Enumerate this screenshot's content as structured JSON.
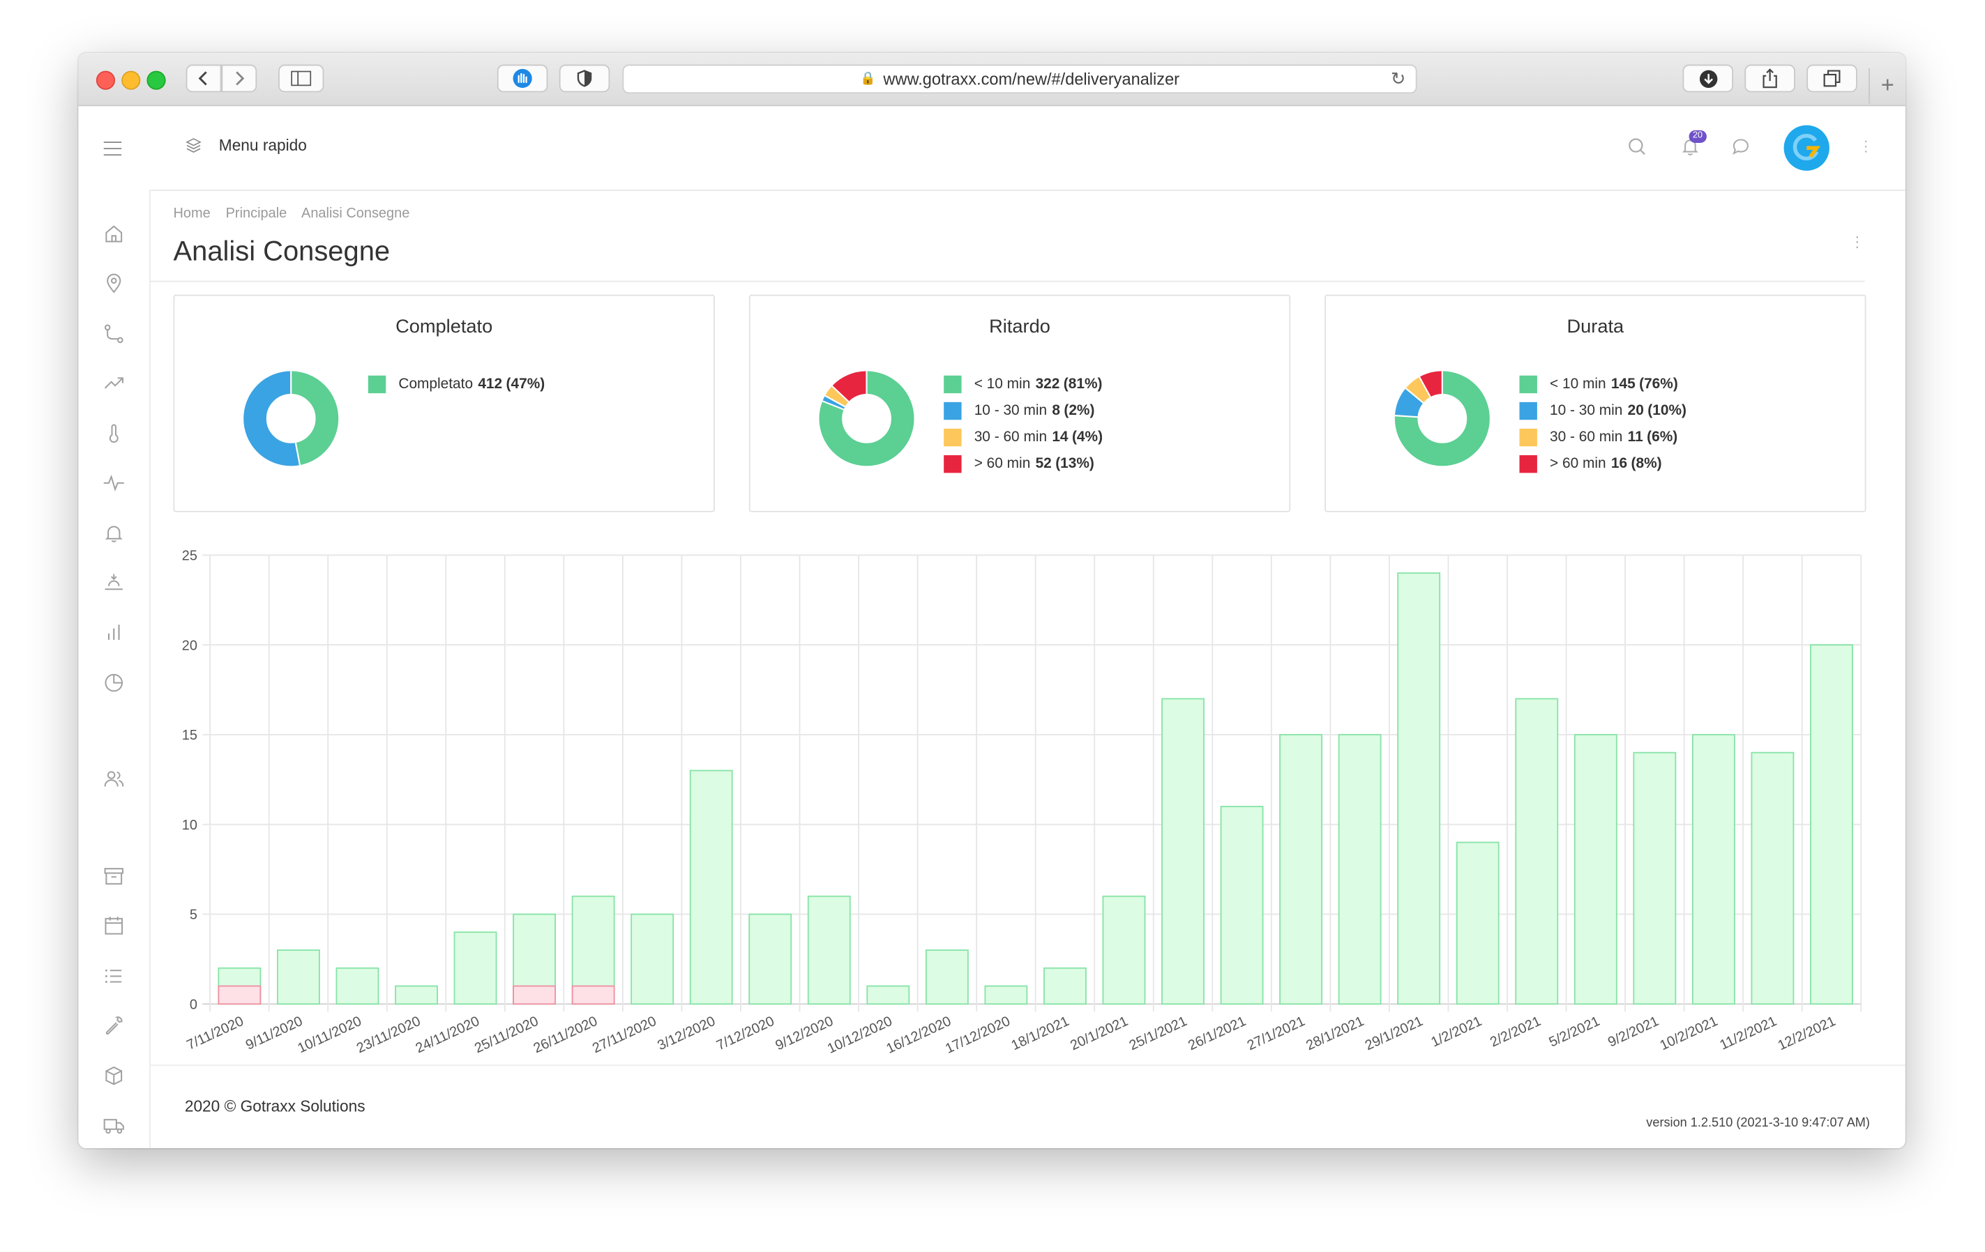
{
  "browser": {
    "url": "www.gotraxx.com/new/#/deliveryanalizer"
  },
  "header": {
    "quick_menu_label": "Menu rapido",
    "notifications_count": "20"
  },
  "breadcrumb": [
    "Home",
    "Principale",
    "Analisi Consegne"
  ],
  "page_title": "Analisi Consegne",
  "cards": [
    {
      "title": "Completato",
      "segments": [
        {
          "label": "Completato",
          "count": "412",
          "pct": "(47%)",
          "value": 47,
          "color": "#5ccf93",
          "in_legend": true
        },
        {
          "label": "",
          "count": "",
          "pct": "",
          "value": 53,
          "color": "#3aa3e3",
          "in_legend": false
        }
      ]
    },
    {
      "title": "Ritardo",
      "segments": [
        {
          "label": "< 10 min",
          "count": "322",
          "pct": "(81%)",
          "value": 81,
          "color": "#5ccf93",
          "in_legend": true
        },
        {
          "label": "10 - 30 min",
          "count": "8",
          "pct": "(2%)",
          "value": 2,
          "color": "#3aa3e3",
          "in_legend": true
        },
        {
          "label": "30 - 60 min",
          "count": "14",
          "pct": "(4%)",
          "value": 4,
          "color": "#fdc75b",
          "in_legend": true
        },
        {
          "label": "> 60 min",
          "count": "52",
          "pct": "(13%)",
          "value": 13,
          "color": "#e8253f",
          "in_legend": true
        }
      ]
    },
    {
      "title": "Durata",
      "segments": [
        {
          "label": "< 10 min",
          "count": "145",
          "pct": "(76%)",
          "value": 76,
          "color": "#5ccf93",
          "in_legend": true
        },
        {
          "label": "10 - 30 min",
          "count": "20",
          "pct": "(10%)",
          "value": 10,
          "color": "#3aa3e3",
          "in_legend": true
        },
        {
          "label": "30 - 60 min",
          "count": "11",
          "pct": "(6%)",
          "value": 6,
          "color": "#fdc75b",
          "in_legend": true
        },
        {
          "label": "> 60 min",
          "count": "16",
          "pct": "(8%)",
          "value": 8,
          "color": "#e8253f",
          "in_legend": true
        }
      ]
    }
  ],
  "chart_data": {
    "type": "bar",
    "stacked": false,
    "categories": [
      "7/11/2020",
      "9/11/2020",
      "10/11/2020",
      "23/11/2020",
      "24/11/2020",
      "25/11/2020",
      "26/11/2020",
      "27/11/2020",
      "3/12/2020",
      "7/12/2020",
      "9/12/2020",
      "10/12/2020",
      "16/12/2020",
      "17/12/2020",
      "18/1/2021",
      "20/1/2021",
      "25/1/2021",
      "26/1/2021",
      "27/1/2021",
      "28/1/2021",
      "29/1/2021",
      "1/2/2021",
      "2/2/2021",
      "5/2/2021",
      "9/2/2021",
      "10/2/2021",
      "11/2/2021",
      "12/2/2021"
    ],
    "series": [
      {
        "values": [
          2,
          3,
          2,
          1,
          4,
          5,
          6,
          5,
          13,
          5,
          6,
          1,
          3,
          1,
          2,
          6,
          17,
          11,
          15,
          15,
          24,
          9,
          17,
          15,
          14,
          15,
          14,
          20
        ],
        "fill": "#dcfce3",
        "stroke": "#86e3a6"
      },
      {
        "values": [
          1,
          0,
          0,
          0,
          0,
          1,
          1,
          0,
          0,
          0,
          0,
          0,
          0,
          0,
          0,
          0,
          0,
          0,
          0,
          0,
          0,
          0,
          0,
          0,
          0,
          0,
          0,
          0
        ],
        "fill": "#fde1e6",
        "stroke": "#ef8fa1"
      }
    ],
    "ylim": [
      0,
      25
    ],
    "yticks": [
      0,
      5,
      10,
      15,
      20,
      25
    ],
    "grid": true
  },
  "footer": {
    "copyright": "2020 © Gotraxx Solutions",
    "version": "version 1.2.510 (2021-3-10 9:47:07 AM)"
  }
}
